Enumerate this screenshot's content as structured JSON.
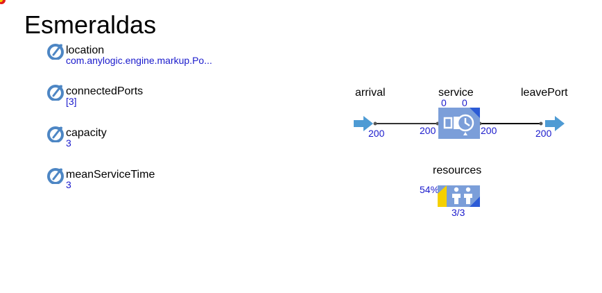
{
  "agent": {
    "title": "Esmeraldas"
  },
  "parameters": [
    {
      "name": "location",
      "value": "com.anylogic.engine.markup.Po..."
    },
    {
      "name": "connectedPorts",
      "value": "[3]"
    },
    {
      "name": "capacity",
      "value": "3"
    },
    {
      "name": "meanServiceTime",
      "value": "3"
    }
  ],
  "flowchart": {
    "arrival": {
      "label": "arrival",
      "out_count": "200"
    },
    "service": {
      "label": "service",
      "queue_count": "0",
      "delay_count": "0",
      "in_count": "200",
      "out_count": "200"
    },
    "leavePort": {
      "label": "leavePort",
      "in_count": "200"
    },
    "resources": {
      "label": "resources",
      "utilization": "54%",
      "available": "3/3",
      "utilization_fraction": 0.54
    }
  },
  "colors": {
    "block_fill": "#7b9ed9",
    "block_corner": "#2c5bd6",
    "accent_yellow": "#f5d000",
    "port_arrow": "#4e9bd4",
    "param_icon": "#4d86c4",
    "value_text": "#1a1acc"
  },
  "icons": {
    "parameter": "parameter-icon",
    "arrival": "source-arrow-icon",
    "service": "service-clock-icon",
    "leave": "exit-arrow-icon",
    "resources": "resource-pool-people-icon"
  }
}
